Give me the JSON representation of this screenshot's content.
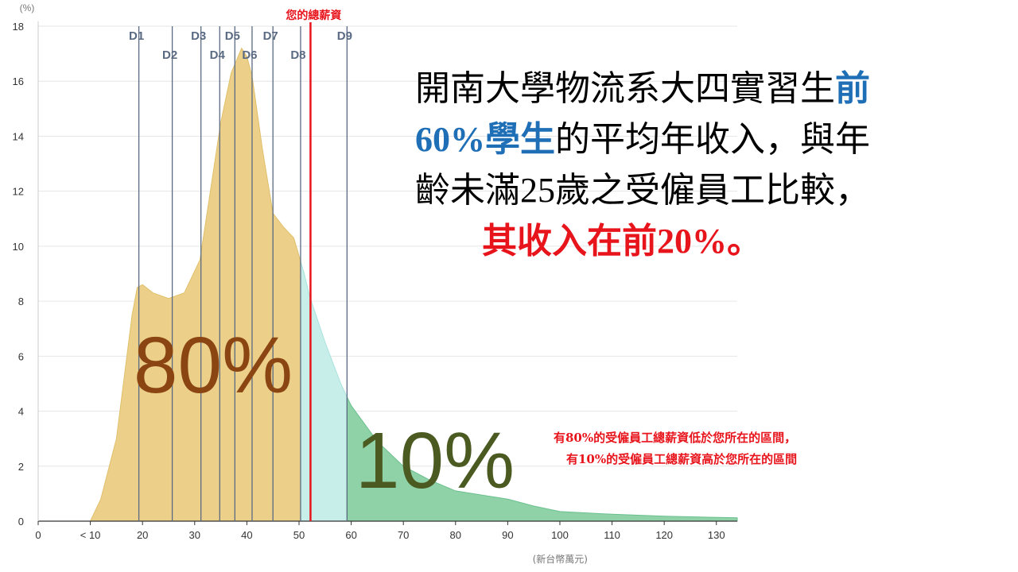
{
  "headline": {
    "line1_a": "開南大學物流系大四實習生",
    "line1_b": "前",
    "line2_a": "60%學生",
    "line2_b": "的平均年收入，與年",
    "line3": "齡未滿25歲之受僱員工比較，",
    "line4": "其收入在前20%。"
  },
  "note": {
    "line1": "有80%的受僱員工總薪資低於您所在的區間，",
    "line2": "有10%的受僱員工總薪資高於您所在的區間"
  },
  "colors": {
    "below": "#ecd08a",
    "between": "#c8eeea",
    "above": "#8fd2a8",
    "marker": "#e8141c",
    "decile": "#5a6a82"
  },
  "chart_data": {
    "type": "area",
    "title": "",
    "xlabel": "(新台幣萬元)",
    "ylabel": "(%)",
    "xlim": [
      0,
      134
    ],
    "ylim": [
      0,
      18
    ],
    "x_ticks": [
      {
        "v": 0,
        "label": "0"
      },
      {
        "v": 10,
        "label": "< 10"
      },
      {
        "v": 20,
        "label": "20"
      },
      {
        "v": 30,
        "label": "30"
      },
      {
        "v": 40,
        "label": "40"
      },
      {
        "v": 50,
        "label": "50"
      },
      {
        "v": 60,
        "label": "60"
      },
      {
        "v": 70,
        "label": "70"
      },
      {
        "v": 80,
        "label": "80"
      },
      {
        "v": 90,
        "label": "90"
      },
      {
        "v": 100,
        "label": "100"
      },
      {
        "v": 110,
        "label": "110"
      },
      {
        "v": 120,
        "label": "120"
      },
      {
        "v": 130,
        "label": "130"
      }
    ],
    "y_ticks": [
      0,
      2,
      4,
      6,
      8,
      10,
      12,
      14,
      16,
      18
    ],
    "series": [
      {
        "x": [
          10,
          12,
          15,
          18,
          19,
          20,
          22,
          25,
          28,
          31,
          33,
          35,
          37,
          39,
          40,
          41,
          43,
          45,
          47,
          49,
          51,
          52,
          55,
          58,
          60,
          65,
          70,
          75,
          80,
          85,
          90,
          95,
          100,
          110,
          120,
          134
        ],
        "y": [
          0,
          0.8,
          3,
          7.5,
          8.5,
          8.6,
          8.3,
          8.1,
          8.3,
          9.5,
          12,
          14.5,
          16.3,
          17.2,
          16.9,
          16.2,
          13.5,
          11.2,
          10.7,
          10.3,
          9,
          8.2,
          6.5,
          5,
          4.2,
          2.9,
          2,
          1.5,
          1.1,
          0.95,
          0.8,
          0.55,
          0.35,
          0.25,
          0.18,
          0.12
        ]
      }
    ],
    "deciles": [
      {
        "label": "D1",
        "x": 19.3,
        "row": 1
      },
      {
        "label": "D2",
        "x": 25.7,
        "row": 2
      },
      {
        "label": "D3",
        "x": 31.2,
        "row": 1
      },
      {
        "label": "D4",
        "x": 34.8,
        "row": 2
      },
      {
        "label": "D5",
        "x": 37.7,
        "row": 1
      },
      {
        "label": "D6",
        "x": 41,
        "row": 2
      },
      {
        "label": "D7",
        "x": 45,
        "row": 1
      },
      {
        "label": "D8",
        "x": 50.3,
        "row": 2
      },
      {
        "label": "D9",
        "x": 59.2,
        "row": 1
      }
    ],
    "marker": {
      "label": "您的總薪資",
      "x": 52.2
    },
    "annotations": {
      "below_pct": "80%",
      "above_pct": "10%"
    }
  }
}
